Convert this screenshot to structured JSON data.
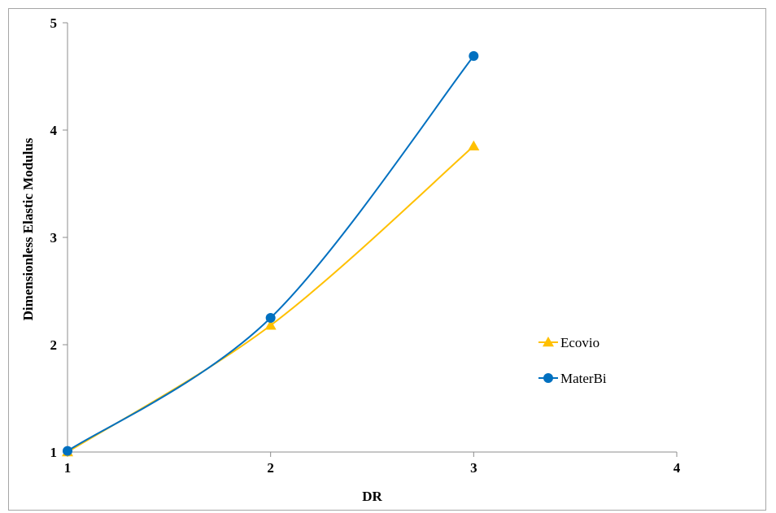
{
  "chart_data": {
    "type": "line",
    "smooth": true,
    "title": "",
    "xlabel": "DR",
    "ylabel": "Dimensionless  Elastic Modulus",
    "xlim": [
      1,
      4
    ],
    "ylim": [
      1,
      5
    ],
    "xticks": [
      "1",
      "2",
      "3",
      "4"
    ],
    "yticks": [
      "1",
      "2",
      "3",
      "4",
      "5"
    ],
    "grid": false,
    "legend_position": "right",
    "series": [
      {
        "name": "Ecovio",
        "x": [
          1,
          2,
          3
        ],
        "y": [
          1.0,
          2.18,
          3.85
        ],
        "color": "#ffc000",
        "marker": "triangle"
      },
      {
        "name": "MaterBi",
        "x": [
          1,
          2,
          3
        ],
        "y": [
          1.01,
          2.25,
          4.69
        ],
        "color": "#0070c0",
        "marker": "circle"
      }
    ]
  }
}
